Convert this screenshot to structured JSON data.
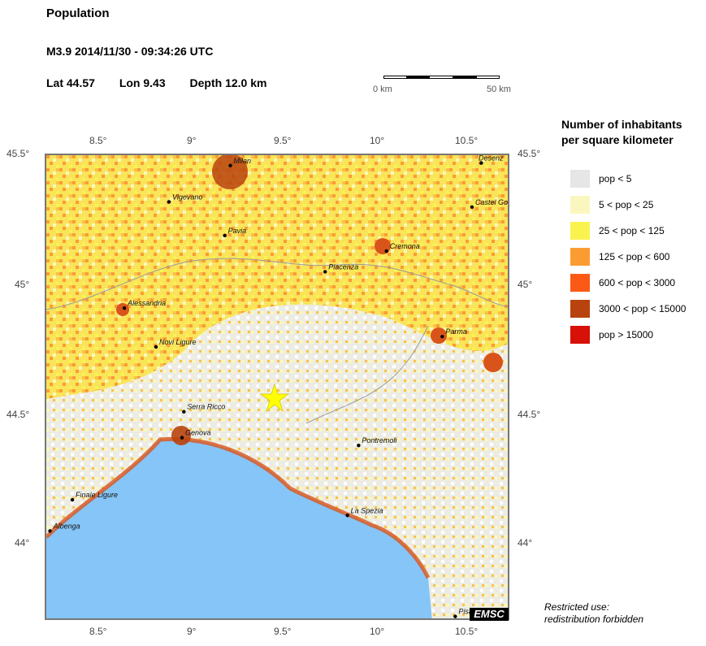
{
  "header": {
    "title": "Population",
    "event": "M3.9  2014/11/30 - 09:34:26 UTC",
    "lat": "Lat 44.57",
    "lon": "Lon  9.43",
    "depth": "Depth  12.0 km"
  },
  "scale_bar": {
    "left_label": "0 km",
    "right_label": "50 km"
  },
  "axes": {
    "x_ticks": [
      "8.5°",
      "9°",
      "9.5°",
      "10°",
      "10.5°"
    ],
    "y_ticks": [
      "45.5°",
      "45°",
      "44.5°",
      "44°"
    ]
  },
  "map": {
    "epicenter": {
      "lat": 44.57,
      "lon": 9.43,
      "color": "#ffff00"
    },
    "sea_color": "#86c5f7",
    "cities": [
      {
        "name": "Milan",
        "lon": 9.19,
        "lat": 45.46
      },
      {
        "name": "Desenz",
        "lon": 10.54,
        "lat": 45.47
      },
      {
        "name": "Vigevano",
        "lon": 8.86,
        "lat": 45.32
      },
      {
        "name": "Castel Go",
        "lon": 10.49,
        "lat": 45.3
      },
      {
        "name": "Pavia",
        "lon": 9.16,
        "lat": 45.19
      },
      {
        "name": "Cremona",
        "lon": 10.03,
        "lat": 45.13
      },
      {
        "name": "Piacenza",
        "lon": 9.7,
        "lat": 45.05
      },
      {
        "name": "Alessandria",
        "lon": 8.62,
        "lat": 44.91
      },
      {
        "name": "Parma",
        "lon": 10.33,
        "lat": 44.8
      },
      {
        "name": "Novi Ligure",
        "lon": 8.79,
        "lat": 44.76
      },
      {
        "name": "Serra Ricco",
        "lon": 8.94,
        "lat": 44.51
      },
      {
        "name": "Genova",
        "lon": 8.93,
        "lat": 44.41
      },
      {
        "name": "Pontremoli",
        "lon": 9.88,
        "lat": 44.38
      },
      {
        "name": "Finale Ligure",
        "lon": 8.34,
        "lat": 44.17
      },
      {
        "name": "La Spezia",
        "lon": 9.82,
        "lat": 44.11
      },
      {
        "name": "Albenga",
        "lon": 8.22,
        "lat": 44.05
      },
      {
        "name": "Pisa",
        "lon": 10.4,
        "lat": 43.72
      }
    ]
  },
  "legend": {
    "title_line1": "Number of inhabitants",
    "title_line2": "per square kilometer",
    "items": [
      {
        "label": "pop < 5",
        "color": "#e6e6e6"
      },
      {
        "label": "5 < pop < 25",
        "color": "#f9f7bd"
      },
      {
        "label": "25 < pop < 125",
        "color": "#f9f350"
      },
      {
        "label": "125 < pop < 600",
        "color": "#fb9c33"
      },
      {
        "label": "600 < pop < 3000",
        "color": "#fb5a16"
      },
      {
        "label": "3000 < pop < 15000",
        "color": "#b9430f"
      },
      {
        "label": "pop > 15000",
        "color": "#d71008"
      }
    ]
  },
  "footer": {
    "restricted_line1": "Restricted use:",
    "restricted_line2": "redistribution forbidden",
    "logo_text": "EMSC"
  }
}
